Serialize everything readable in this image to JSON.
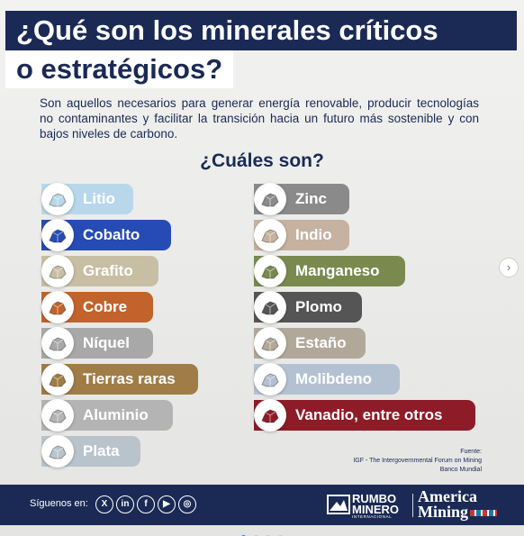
{
  "title": {
    "line1": "¿Qué son los minerales críticos",
    "line2": "o estratégicos?"
  },
  "description": "Son aquellos necesarios para generar energía renovable, producir tecnologías no contaminantes y facilitar la transición hacia un futuro más sostenible y con bajos niveles de carbono.",
  "subtitle": "¿Cuáles son?",
  "minerals_left": [
    {
      "label": "Litio",
      "color": "#b9d7ea",
      "icon": "lithium-crystal-icon"
    },
    {
      "label": "Cobalto",
      "color": "#274bb5",
      "icon": "cobalt-crystal-icon"
    },
    {
      "label": "Grafito",
      "color": "#c7bea4",
      "icon": "graphite-rock-icon"
    },
    {
      "label": "Cobre",
      "color": "#c2632c",
      "icon": "copper-rock-icon"
    },
    {
      "label": "Níquel",
      "color": "#a8a8a8",
      "icon": "nickel-rock-icon"
    },
    {
      "label": "Tierras raras",
      "color": "#a07c46",
      "icon": "rare-earths-pile-icon"
    },
    {
      "label": "Aluminio",
      "color": "#b4b4b4",
      "icon": "aluminum-rock-icon"
    },
    {
      "label": "Plata",
      "color": "#b9c3cc",
      "icon": "silver-rock-icon"
    }
  ],
  "minerals_right": [
    {
      "label": "Zinc",
      "color": "#8a8a8a",
      "icon": "zinc-rock-icon"
    },
    {
      "label": "Indio",
      "color": "#c5b2a0",
      "icon": "indium-rock-icon"
    },
    {
      "label": "Manganeso",
      "color": "#7a8a4f",
      "icon": "manganese-rock-icon"
    },
    {
      "label": "Plomo",
      "color": "#555555",
      "icon": "lead-rock-icon"
    },
    {
      "label": "Estaño",
      "color": "#b2a89a",
      "icon": "tin-rock-icon"
    },
    {
      "label": "Molibdeno",
      "color": "#b3c1d2",
      "icon": "molybdenum-rock-icon"
    },
    {
      "label": "Vanadio, entre otros",
      "color": "#8e1c28",
      "icon": "vanadium-crystal-icon"
    }
  ],
  "source": {
    "heading": "Fuente:",
    "lines": [
      "IGF - The Intergovernmental Forum on Mining",
      "Banco Mundial"
    ]
  },
  "footer": {
    "follow_text": "Síguenos en:",
    "social_icons": [
      "x-icon",
      "linkedin-icon",
      "facebook-icon",
      "youtube-icon",
      "instagram-icon"
    ],
    "brand1": {
      "line1": "RUMBO",
      "line2": "MINERO",
      "tag": "INTERNACIONAL"
    },
    "brand2": {
      "line1": "America",
      "line2": "Mining"
    }
  },
  "carousel": {
    "slides": 4,
    "active": 1
  },
  "colors": {
    "navy": "#1b2a55",
    "background": "#ededeb"
  }
}
